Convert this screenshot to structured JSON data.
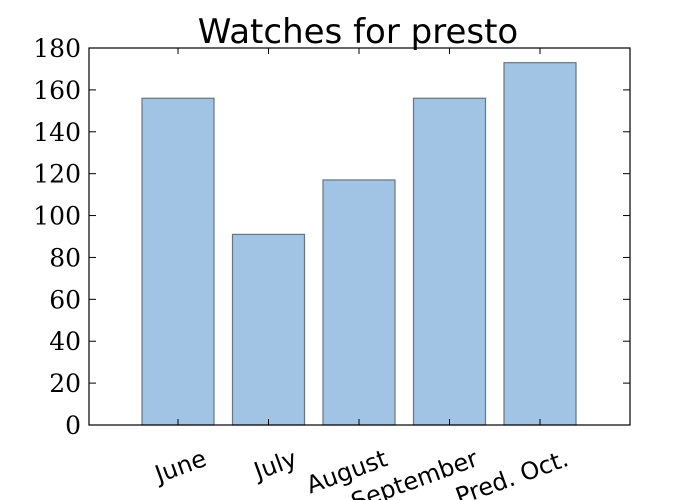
{
  "chart_data": {
    "type": "bar",
    "title": "Watches for presto",
    "xlabel": "",
    "ylabel": "",
    "categories": [
      "June",
      "July",
      "August",
      "September",
      "Pred. Oct."
    ],
    "values": [
      156,
      91,
      117,
      156,
      173
    ],
    "ylim": [
      0,
      180
    ],
    "yticks": [
      0,
      20,
      40,
      60,
      80,
      100,
      120,
      140,
      160,
      180
    ],
    "grid": false,
    "legend": "none",
    "bar_color": "#a1c3e4",
    "bar_edge_color": "#6b747d"
  }
}
